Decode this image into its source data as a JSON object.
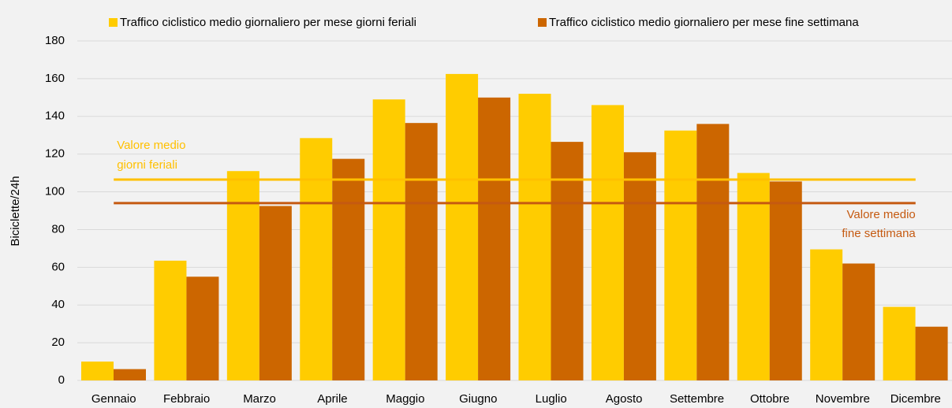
{
  "chart_data": {
    "type": "bar",
    "y_label": "Biciclette/24h",
    "categories": [
      "Gennaio",
      "Febbraio",
      "Marzo",
      "Aprile",
      "Maggio",
      "Giugno",
      "Luglio",
      "Agosto",
      "Settembre",
      "Ottobre",
      "Novembre",
      "Dicembre"
    ],
    "series": [
      {
        "name": "Traffico ciclistico medio giornaliero per mese giorni feriali",
        "color": "#ffcc00",
        "values": [
          10,
          63.5,
          111,
          128.5,
          149,
          162.5,
          152,
          146,
          132.5,
          110,
          69.5,
          39
        ]
      },
      {
        "name": "Traffico ciclistico medio giornaliero per mese fine settimana",
        "color": "#cc6600",
        "values": [
          6,
          55,
          92.5,
          117.5,
          136.5,
          150,
          126.5,
          121,
          136,
          105.5,
          62,
          28.5
        ]
      }
    ],
    "reference_lines": [
      {
        "value": 106.5,
        "color": "#ffc000",
        "label": [
          "Valore medio",
          "giorni feriali"
        ]
      },
      {
        "value": 94,
        "color": "#c55a11",
        "label": [
          "Valore medio",
          "fine settimana"
        ]
      }
    ],
    "ylim": [
      0,
      180
    ],
    "yticks": [
      0,
      20,
      40,
      60,
      80,
      100,
      120,
      140,
      160,
      180
    ],
    "grid": true,
    "legend": "top"
  }
}
